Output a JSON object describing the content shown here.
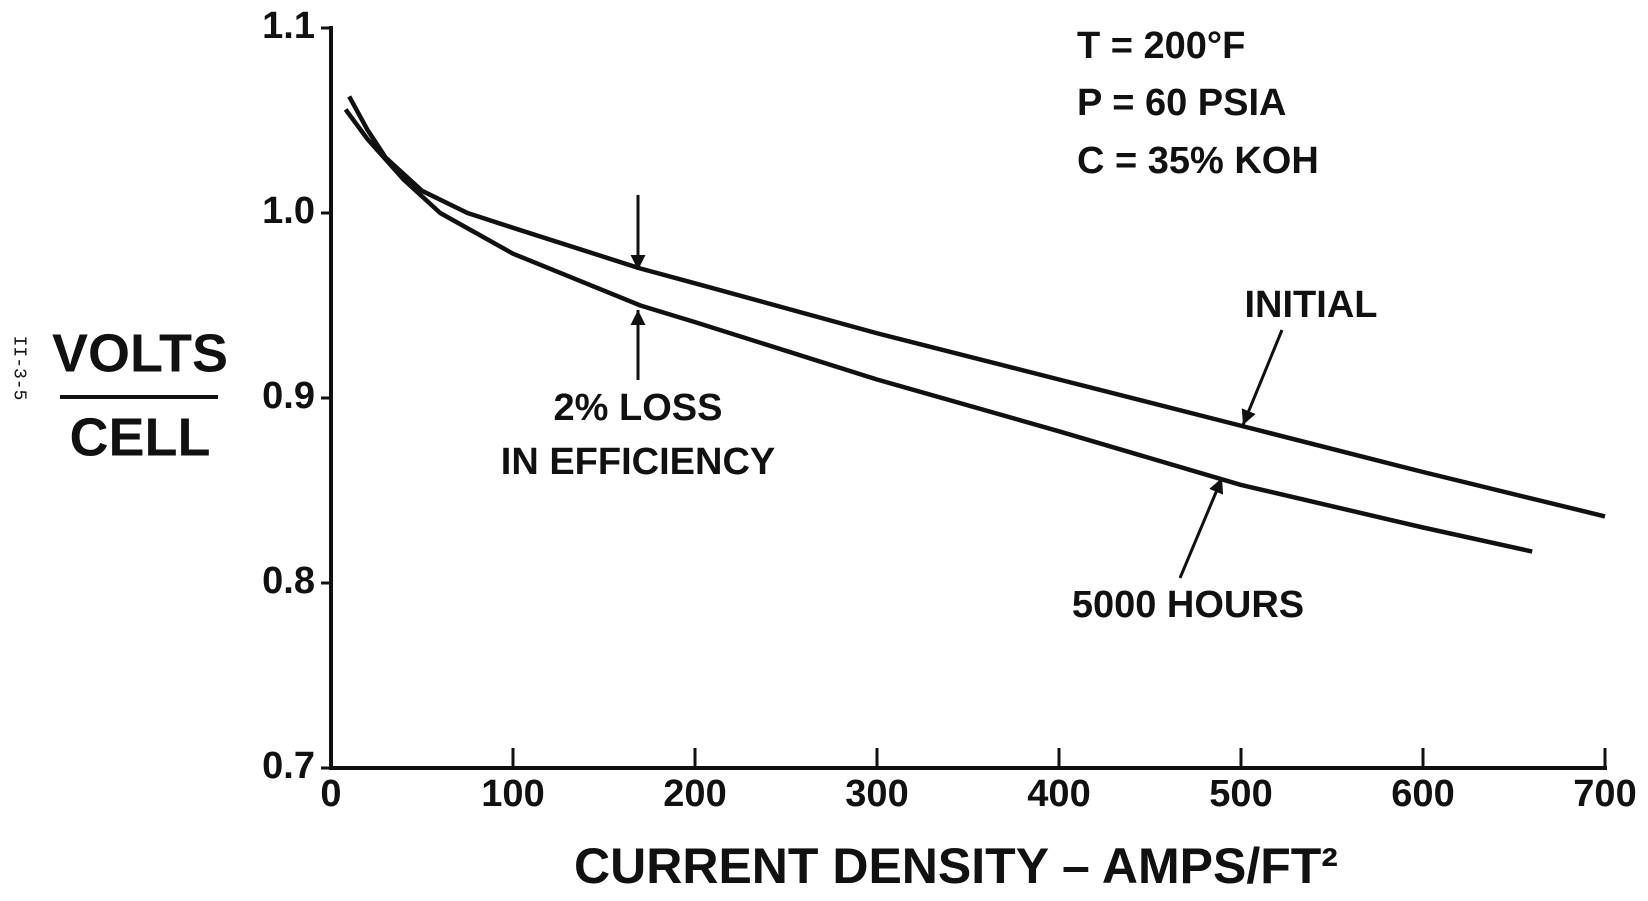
{
  "chart_data": {
    "type": "line",
    "y_label_top": "VOLTS",
    "y_label_bottom": "CELL",
    "x_label": "CURRENT DENSITY – AMPS/FT²",
    "page_number": "II-3-5",
    "annotations": [
      "T = 200°F",
      "P = 60 PSIA",
      "C = 35% KOH",
      "2% LOSS",
      "IN EFFICIENCY"
    ],
    "xlim": [
      0,
      700
    ],
    "xticks": [
      0,
      100,
      200,
      300,
      400,
      500,
      600,
      700
    ],
    "ylim": [
      0.7,
      1.1
    ],
    "yticks": [
      0.7,
      0.8,
      0.9,
      {
        "value": 1,
        "label": "1.0"
      },
      1.1
    ],
    "series": [
      {
        "name": "INITIAL",
        "color": "#111111",
        "x": [
          10,
          20,
          30,
          50,
          75,
          100,
          170,
          200,
          300,
          400,
          500,
          600,
          700
        ],
        "values": [
          1.063,
          1.045,
          1.03,
          1.012,
          1.0,
          0.992,
          0.97,
          0.962,
          0.935,
          0.91,
          0.885,
          0.86,
          0.836
        ]
      },
      {
        "name": "5000 HOURS",
        "color": "#111111",
        "x": [
          8,
          20,
          40,
          60,
          100,
          170,
          200,
          300,
          400,
          500,
          600,
          660
        ],
        "values": [
          1.056,
          1.04,
          1.018,
          1.0,
          0.978,
          0.95,
          0.941,
          0.91,
          0.882,
          0.853,
          0.83,
          0.817
        ]
      }
    ]
  }
}
